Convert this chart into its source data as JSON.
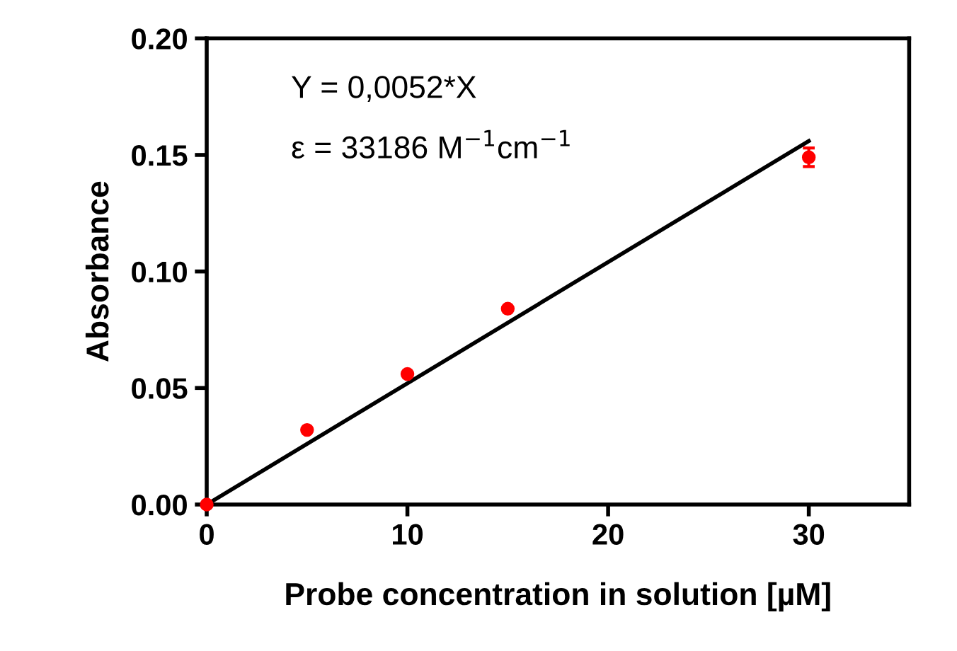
{
  "chart_data": {
    "type": "scatter",
    "xlabel": "Probe concentration in solution [µM]",
    "ylabel": "Absorbance",
    "xlim": [
      0,
      35
    ],
    "xticks": [
      0,
      10,
      20,
      30
    ],
    "ylim": [
      0,
      0.2
    ],
    "yticks": [
      {
        "value": 0,
        "label": "0.00"
      },
      {
        "value": 0.05,
        "label": "0.05"
      },
      {
        "value": 0.1,
        "label": "0.10"
      },
      {
        "value": 0.15,
        "label": "0.15"
      },
      {
        "value": 0.2,
        "label": "0.20"
      }
    ],
    "grid": false,
    "legend": false,
    "marker": "circle",
    "annotations": [
      "Y = 0,0052*X",
      "ε = 33186 M$^{−1}$cm$^{−1}$"
    ],
    "series": [
      {
        "color": "#ff0000",
        "x": [
          0,
          5,
          10,
          15,
          30
        ],
        "values": [
          0,
          0.032,
          0.056,
          0.084,
          0.149
        ],
        "errors": [
          null,
          null,
          null,
          null,
          0.004
        ]
      },
      {
        "type": "line",
        "color": "#000000",
        "x": [
          0,
          30
        ],
        "values": [
          0,
          0.156
        ],
        "marker": "none",
        "line_style": "solid"
      }
    ]
  }
}
